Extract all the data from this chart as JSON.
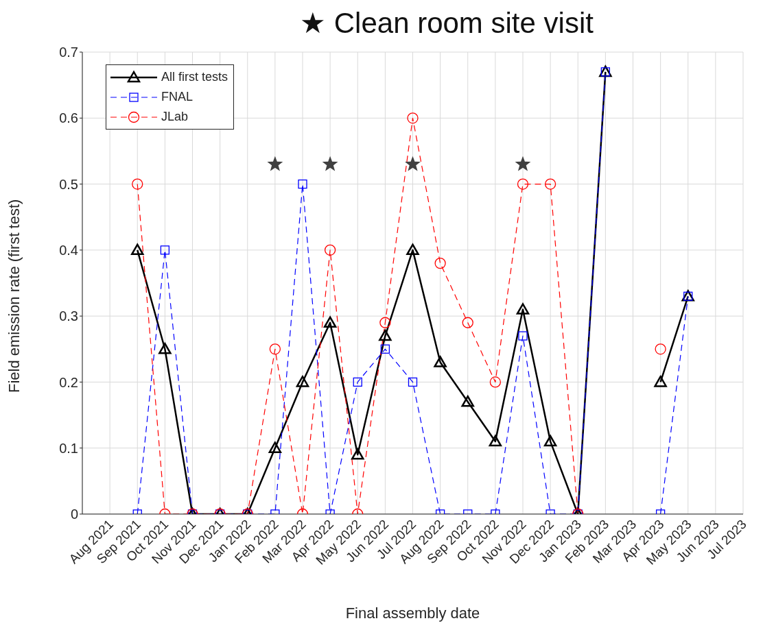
{
  "chart_data": {
    "type": "line",
    "title": "★ Clean room site visit",
    "xlabel": "Final assembly date",
    "ylabel": "Field emission rate (first test)",
    "categories": [
      null,
      "Aug 2021",
      "Sep 2021",
      "Oct 2021",
      "Nov 2021",
      "Dec 2021",
      "Jan 2022",
      "Feb 2022",
      "Mar 2022",
      "Apr 2022",
      "May 2022",
      "Jun 2022",
      "Jul 2022",
      "Aug 2022",
      "Sep 2022",
      "Oct 2022",
      "Nov 2022",
      "Dec 2022",
      "Jan 2023",
      "Feb 2023",
      "Mar 2023",
      "Apr 2023",
      "May 2023",
      "Jun 2023",
      "Jul 2023"
    ],
    "series": [
      {
        "name": "All first tests",
        "color": "#000000",
        "marker": "triangle",
        "line_style": "solid",
        "values": [
          null,
          null,
          0.4,
          0.25,
          0,
          0,
          0,
          0.1,
          0.2,
          0.29,
          0.09,
          0.27,
          0.4,
          0.23,
          0.17,
          0.11,
          0.31,
          0.11,
          0,
          0.67,
          null,
          0.2,
          0.33,
          null,
          null
        ]
      },
      {
        "name": "FNAL",
        "color": "#0000ff",
        "marker": "square",
        "line_style": "dashed",
        "values": [
          null,
          null,
          0,
          0.4,
          0,
          0,
          0,
          0,
          0.5,
          0,
          0.2,
          0.25,
          0.2,
          0,
          0,
          0,
          0.27,
          0,
          0,
          0.67,
          null,
          0,
          0.33,
          null,
          null
        ]
      },
      {
        "name": "JLab",
        "color": "#ff0000",
        "marker": "circle",
        "line_style": "dashed",
        "values": [
          null,
          null,
          0.5,
          0,
          0,
          0,
          0,
          0.25,
          0,
          0.4,
          0,
          0.29,
          0.6,
          0.38,
          0.29,
          0.2,
          0.5,
          0.5,
          0,
          null,
          null,
          0.25,
          null,
          null,
          null
        ]
      },
      {
        "type": "scatter",
        "color": "#404040",
        "marker": "star",
        "values": [
          null,
          null,
          null,
          null,
          null,
          null,
          null,
          0.53,
          null,
          0.53,
          null,
          null,
          0.53,
          null,
          null,
          null,
          0.53,
          null,
          null,
          null,
          null,
          null,
          null,
          null,
          null
        ]
      }
    ],
    "ylim": [
      0,
      0.7
    ],
    "yticks": [
      0,
      0.1,
      0.2,
      0.3,
      0.4,
      0.5,
      0.6,
      0.7
    ],
    "grid": true,
    "legend": "top left"
  }
}
